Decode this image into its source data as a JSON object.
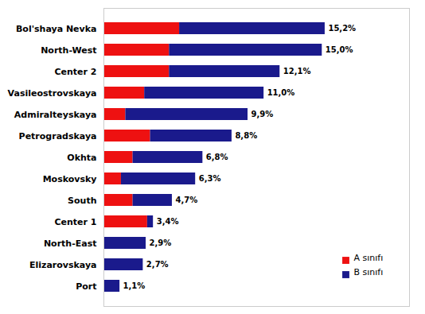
{
  "chart_data": {
    "type": "bar",
    "orientation": "horizontal",
    "stacked": true,
    "categories": [
      "Bol'shaya Nevka",
      "North-West",
      "Center 2",
      "Vasileostrovskaya",
      "Admiralteyskaya",
      "Petrogradskaya",
      "Okhta",
      "Moskovsky",
      "South",
      "Center 1",
      "North-East",
      "Elizarovskaya",
      "Port"
    ],
    "series": [
      {
        "name": "A sınıfı",
        "color": "#ee1111",
        "values": [
          5.2,
          4.5,
          4.5,
          2.8,
          1.5,
          3.2,
          2.0,
          1.2,
          2.0,
          3.0,
          0.0,
          0.0,
          0.0
        ]
      },
      {
        "name": "B sınıfı",
        "color": "#1a1a8c",
        "values": [
          10.0,
          10.5,
          7.6,
          8.2,
          8.4,
          5.6,
          4.8,
          5.1,
          2.7,
          0.4,
          2.9,
          2.7,
          1.1
        ]
      }
    ],
    "totals": [
      15.2,
      15.0,
      12.1,
      11.0,
      9.9,
      8.8,
      6.8,
      6.3,
      4.7,
      3.4,
      2.9,
      2.7,
      1.1
    ],
    "total_labels": [
      "15,2%",
      "15,0%",
      "12,1%",
      "11,0%",
      "9,9%",
      "8,8%",
      "6,8%",
      "6,3%",
      "4,7%",
      "3,4%",
      "2,9%",
      "2,7%",
      "1,1%"
    ],
    "xlim": [
      0,
      21
    ],
    "tick_labels": "y",
    "legend": "lower right"
  }
}
